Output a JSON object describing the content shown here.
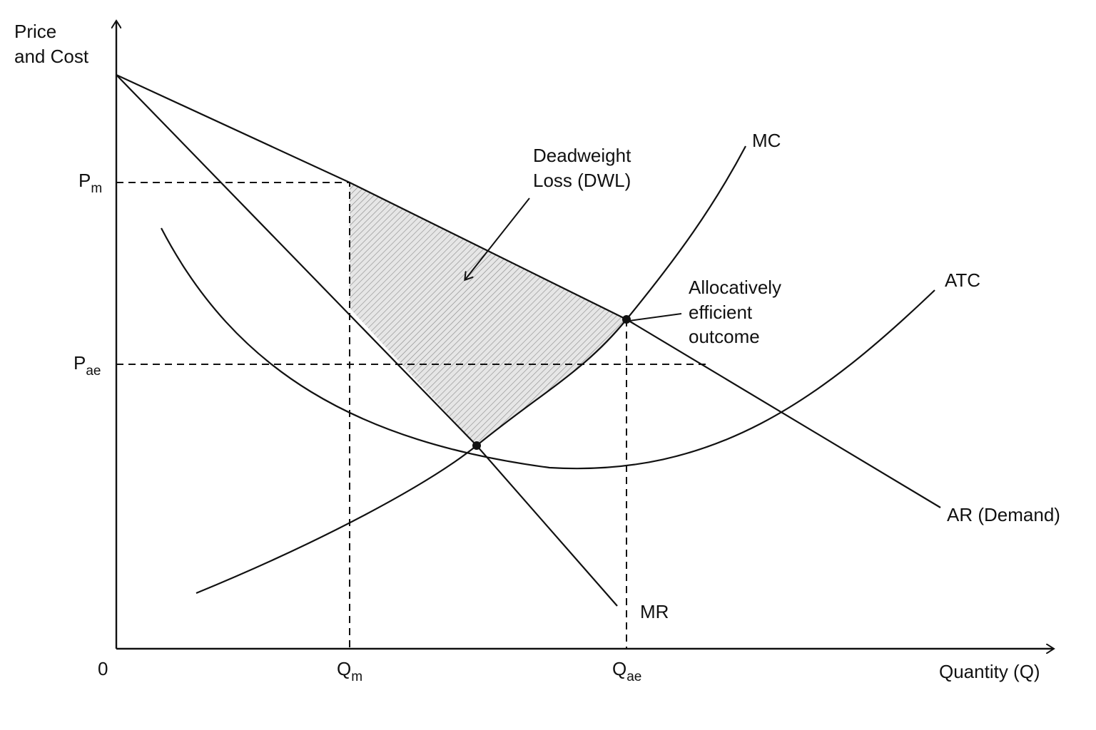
{
  "y_axis": {
    "label": [
      "Price",
      "and Cost"
    ]
  },
  "x_axis": {
    "label": "Quantity (Q)",
    "origin": "0"
  },
  "price_labels": [
    {
      "main": "P",
      "sub": "m"
    },
    {
      "main": "P",
      "sub": "ae"
    }
  ],
  "quantity_labels": [
    {
      "main": "Q",
      "sub": "m"
    },
    {
      "main": "Q",
      "sub": "ae"
    }
  ],
  "curves": {
    "mc": "MC",
    "atc": "ATC",
    "mr": "MR",
    "ar": "AR (Demand)"
  },
  "annotations": {
    "dwl": [
      "Deadweight",
      "Loss (DWL)"
    ],
    "efficient": [
      "Allocatively",
      "efficient",
      "outcome"
    ]
  }
}
